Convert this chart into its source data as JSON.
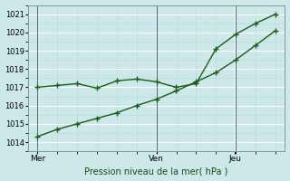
{
  "xlabel": "Pression niveau de la mer( hPa )",
  "bg_color": "#cce8e8",
  "grid_color": "#b0d8d8",
  "line_color": "#1a5c1a",
  "ylim": [
    1013.5,
    1021.5
  ],
  "yticks": [
    1014,
    1015,
    1016,
    1017,
    1018,
    1019,
    1020,
    1021
  ],
  "xtick_labels": [
    "Mer",
    "Ven",
    "Jeu"
  ],
  "xtick_positions": [
    0.0,
    0.5,
    0.83
  ],
  "line1_x": [
    0.0,
    0.083,
    0.167,
    0.25,
    0.333,
    0.417,
    0.5,
    0.583,
    0.667,
    0.75,
    0.833,
    0.917,
    1.0
  ],
  "line1_y": [
    1014.3,
    1014.7,
    1015.0,
    1015.3,
    1015.6,
    1016.0,
    1016.35,
    1016.8,
    1017.3,
    1017.8,
    1018.5,
    1019.3,
    1020.1
  ],
  "line2_x": [
    0.0,
    0.083,
    0.167,
    0.25,
    0.333,
    0.417,
    0.5,
    0.583,
    0.667,
    0.75,
    0.833,
    0.917,
    1.0
  ],
  "line2_y": [
    1017.0,
    1017.1,
    1017.2,
    1016.95,
    1017.35,
    1017.45,
    1017.3,
    1017.0,
    1017.2,
    1019.1,
    1019.9,
    1020.5,
    1021.0
  ],
  "vline_positions": [
    0.0,
    0.5,
    0.833
  ],
  "markersize": 3,
  "linewidth": 1.0
}
